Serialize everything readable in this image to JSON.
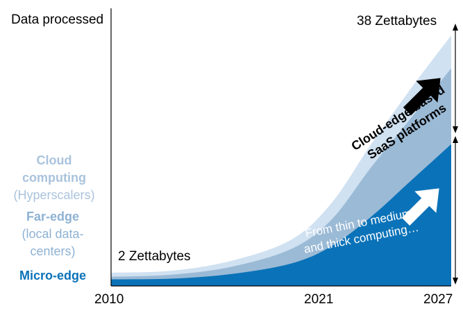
{
  "chart_data": {
    "type": "area",
    "title": "",
    "ylabel": "Data processed",
    "xlabel": "",
    "x_ticks": [
      "2010",
      "2021",
      "2027"
    ],
    "x_range": [
      2010,
      2027
    ],
    "y_range": [
      0,
      40
    ],
    "grid": false,
    "unit": "Zettabytes",
    "series": [
      {
        "name": "Micro-edge",
        "color": "#0a72b8",
        "points": [
          [
            2010,
            1.0
          ],
          [
            2013,
            1.1
          ],
          [
            2016,
            1.8
          ],
          [
            2019,
            3.4
          ],
          [
            2021,
            6.0
          ],
          [
            2023,
            10.5
          ],
          [
            2025,
            16.0
          ],
          [
            2027,
            21.5
          ]
        ]
      },
      {
        "name": "Far-edge (local data-centers)",
        "color": "#9bbad6",
        "points": [
          [
            2010,
            1.4
          ],
          [
            2013,
            1.7
          ],
          [
            2016,
            2.9
          ],
          [
            2019,
            5.6
          ],
          [
            2021,
            10.0
          ],
          [
            2023,
            18.0
          ],
          [
            2025,
            25.5
          ],
          [
            2027,
            33.0
          ]
        ]
      },
      {
        "name": "Cloud computing (Hyperscalers)",
        "color": "#d0e1f1",
        "points": [
          [
            2010,
            2.0
          ],
          [
            2013,
            2.3
          ],
          [
            2016,
            3.8
          ],
          [
            2019,
            7.0
          ],
          [
            2021,
            12.5
          ],
          [
            2023,
            21.5
          ],
          [
            2025,
            30.0
          ],
          [
            2027,
            38.0
          ]
        ]
      }
    ],
    "annotations": {
      "start_value": "2 Zettabytes",
      "end_value": "38 Zettabytes",
      "cloud_edge": [
        "Cloud-edge based",
        "SaaS platforms"
      ],
      "thin_to_thick": [
        "From thin to medium",
        "and thick computing…"
      ]
    }
  },
  "legend": {
    "cloud": {
      "title": "Cloud",
      "title2": "computing",
      "sub": "(Hyperscalers)",
      "color": "#aac3dc"
    },
    "far": {
      "title": "Far-edge",
      "sub1": "(local data-",
      "sub2": "centers)",
      "color": "#8eb2d3"
    },
    "micro": {
      "title": "Micro-edge",
      "color": "#0a72b8"
    }
  }
}
